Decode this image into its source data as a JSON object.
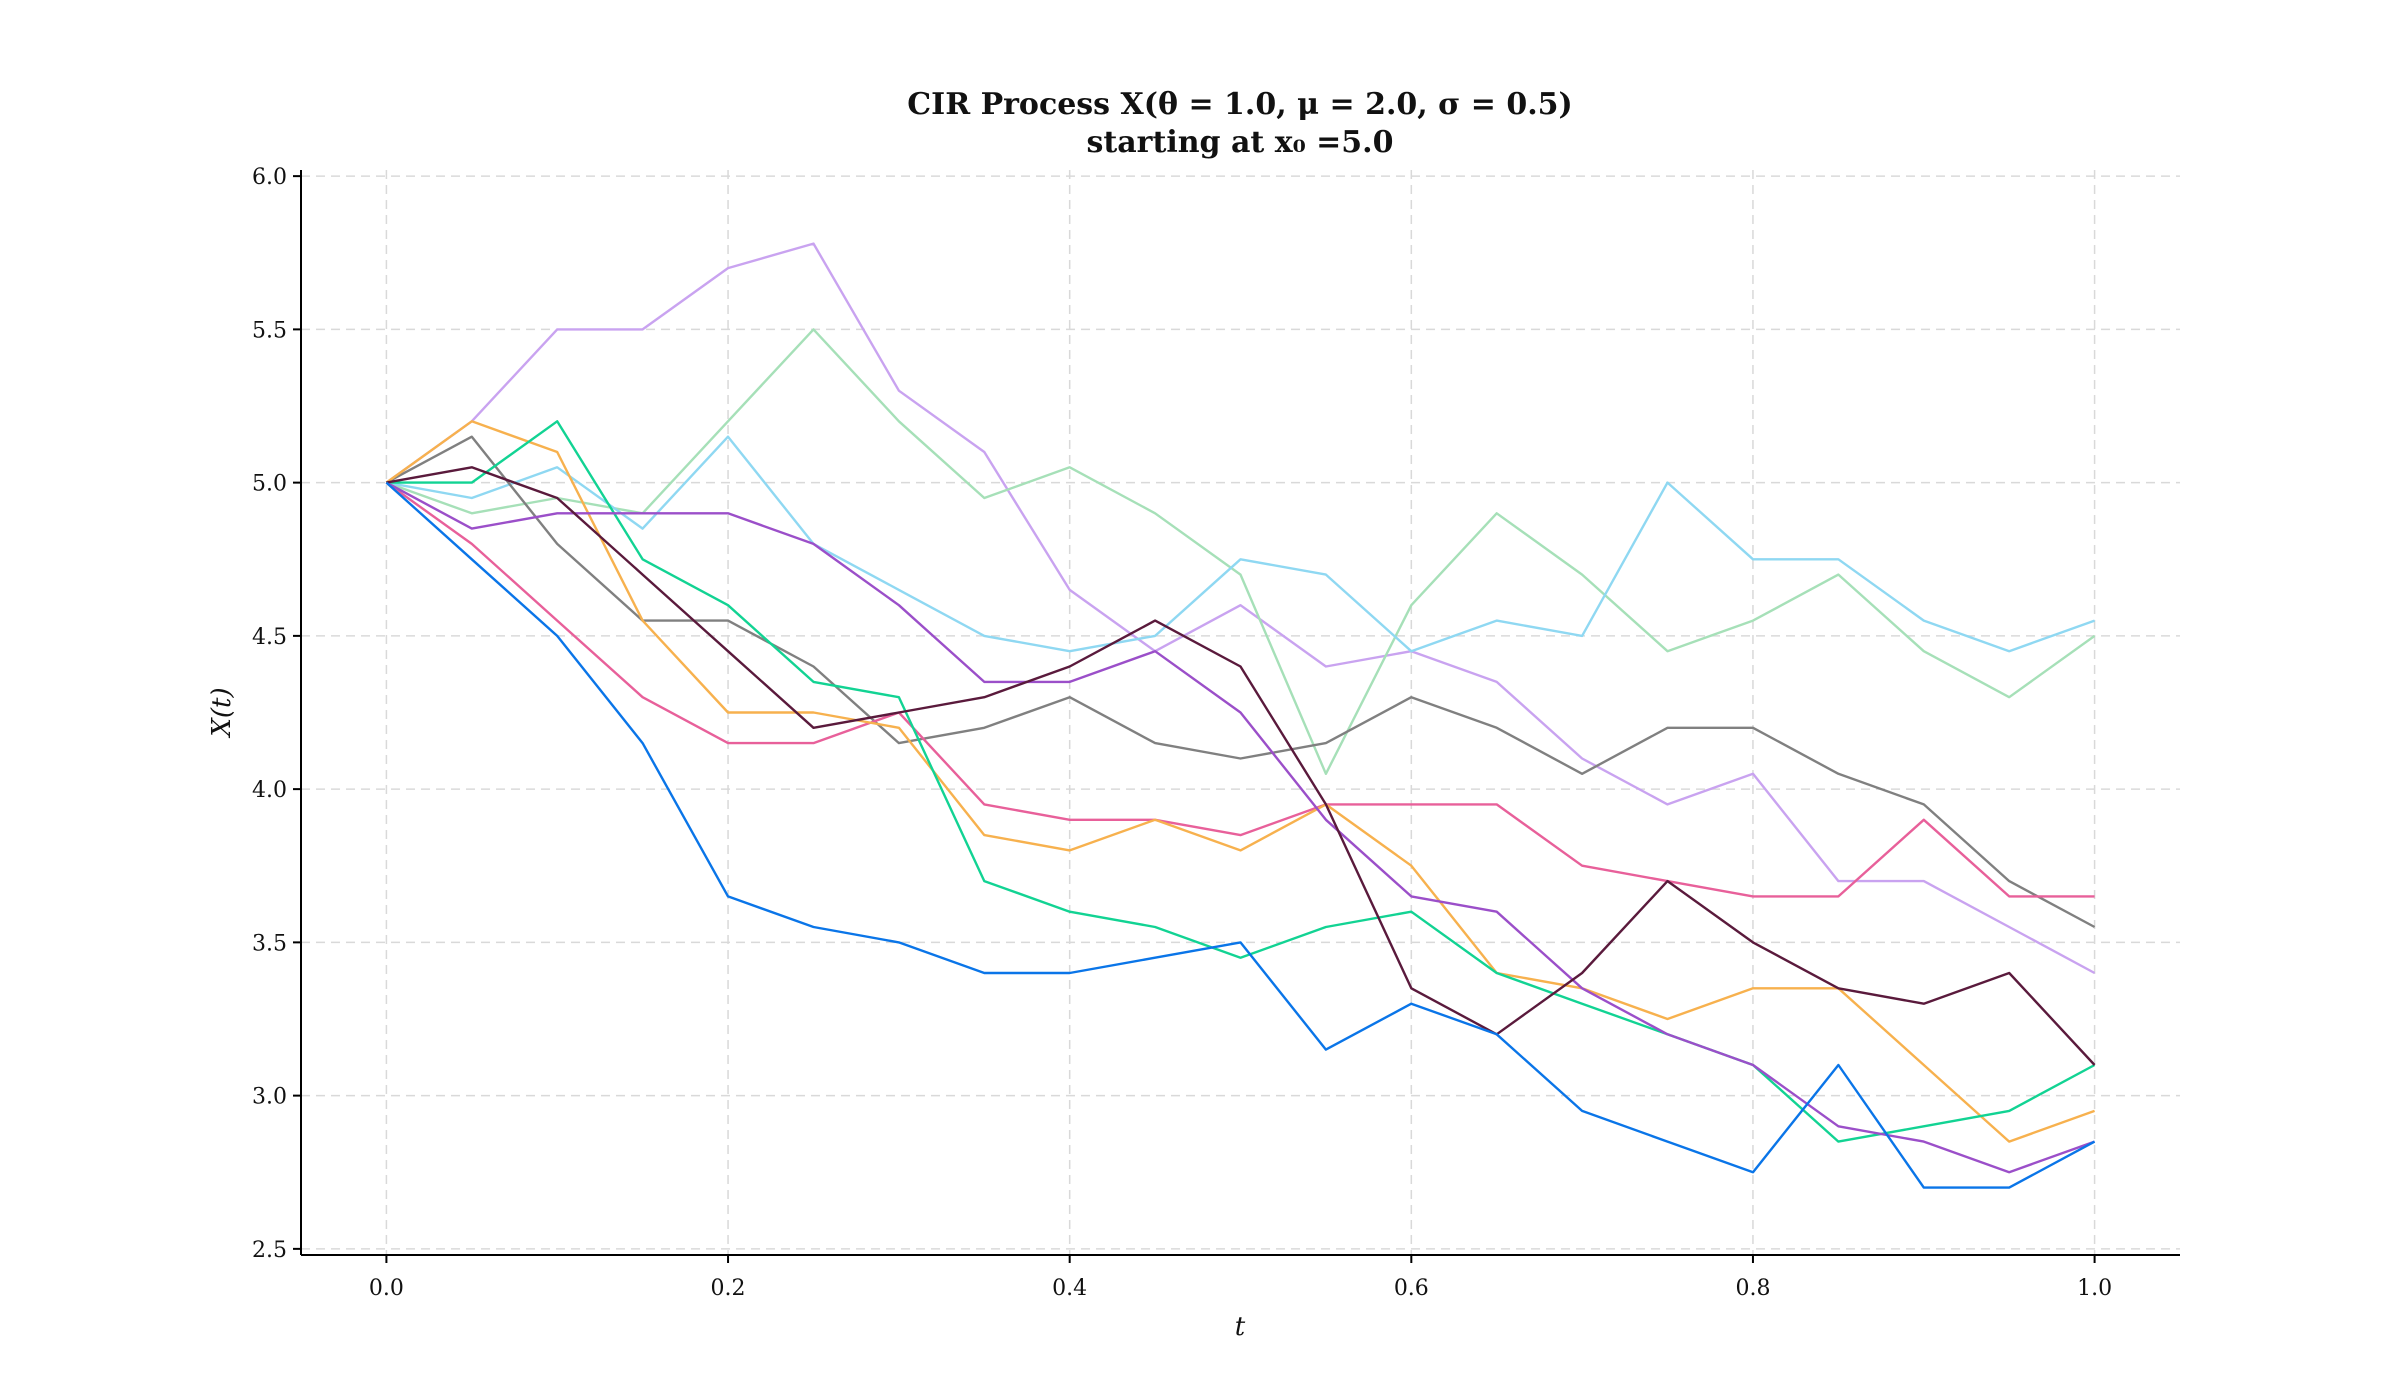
{
  "chart_data": {
    "type": "line",
    "title_line1": "CIR Process X(θ = 1.0, μ = 2.0, σ = 0.5)",
    "title_line2": "starting at x₀ =5.0",
    "xlabel": "t",
    "ylabel": "X(t)",
    "xlim": [
      -0.05,
      1.05
    ],
    "ylim": [
      2.48,
      6.02
    ],
    "xticks": [
      0.0,
      0.2,
      0.4,
      0.6,
      0.8,
      1.0
    ],
    "xtick_labels": [
      "0.0",
      "0.2",
      "0.4",
      "0.6",
      "0.8",
      "1.0"
    ],
    "yticks": [
      2.5,
      3.0,
      3.5,
      4.0,
      4.5,
      5.0,
      5.5,
      6.0
    ],
    "ytick_labels": [
      "2.5",
      "3.0",
      "3.5",
      "4.0",
      "4.5",
      "5.0",
      "5.5",
      "6.0"
    ],
    "grid": true,
    "x": [
      0.0,
      0.05,
      0.1,
      0.15,
      0.2,
      0.25,
      0.3,
      0.35,
      0.4,
      0.45,
      0.5,
      0.55,
      0.6,
      0.65,
      0.7,
      0.75,
      0.8,
      0.85,
      0.9,
      0.95,
      1.0
    ],
    "series": [
      {
        "color": "#c9a3f0",
        "values": [
          5.0,
          5.2,
          5.5,
          5.5,
          5.7,
          5.78,
          5.3,
          5.1,
          4.65,
          4.45,
          4.6,
          4.4,
          4.45,
          4.35,
          4.1,
          3.95,
          4.05,
          3.7,
          3.7,
          3.55,
          3.4
        ]
      },
      {
        "color": "#a6e0b8",
        "values": [
          5.0,
          4.9,
          4.95,
          4.9,
          5.2,
          5.5,
          5.2,
          4.95,
          5.05,
          4.9,
          4.7,
          4.05,
          4.6,
          4.9,
          4.7,
          4.45,
          4.55,
          4.7,
          4.45,
          4.3,
          4.5
        ]
      },
      {
        "color": "#8fd8f2",
        "values": [
          5.0,
          4.95,
          5.05,
          4.85,
          5.15,
          4.8,
          4.65,
          4.5,
          4.45,
          4.5,
          4.75,
          4.7,
          4.45,
          4.55,
          4.5,
          5.0,
          4.75,
          4.75,
          4.55,
          4.45,
          4.55
        ]
      },
      {
        "color": "#808080",
        "values": [
          5.0,
          5.15,
          4.8,
          4.55,
          4.55,
          4.4,
          4.15,
          4.2,
          4.3,
          4.15,
          4.1,
          4.15,
          4.3,
          4.2,
          4.05,
          4.2,
          4.2,
          4.05,
          3.95,
          3.7,
          3.55
        ]
      },
      {
        "color": "#e8609a",
        "values": [
          5.0,
          4.8,
          4.55,
          4.3,
          4.15,
          4.15,
          4.25,
          3.95,
          3.9,
          3.9,
          3.85,
          3.95,
          3.95,
          3.95,
          3.75,
          3.7,
          3.65,
          3.65,
          3.9,
          3.65,
          3.65
        ]
      },
      {
        "color": "#f7b14e",
        "values": [
          5.0,
          5.2,
          5.1,
          4.55,
          4.25,
          4.25,
          4.2,
          3.85,
          3.8,
          3.9,
          3.8,
          3.95,
          3.75,
          3.4,
          3.35,
          3.25,
          3.35,
          3.35,
          3.1,
          2.85,
          2.95
        ]
      },
      {
        "color": "#12d393",
        "values": [
          5.0,
          5.0,
          5.2,
          4.75,
          4.6,
          4.35,
          4.3,
          3.7,
          3.6,
          3.55,
          3.45,
          3.55,
          3.6,
          3.4,
          3.3,
          3.2,
          3.1,
          2.85,
          2.9,
          2.95,
          3.1
        ]
      },
      {
        "color": "#9b4fc9",
        "values": [
          5.0,
          4.85,
          4.9,
          4.9,
          4.9,
          4.8,
          4.6,
          4.35,
          4.35,
          4.45,
          4.25,
          3.9,
          3.65,
          3.6,
          3.35,
          3.2,
          3.1,
          2.9,
          2.85,
          2.75,
          2.85
        ]
      },
      {
        "color": "#5a1a3c",
        "values": [
          5.0,
          5.05,
          4.95,
          4.7,
          4.45,
          4.2,
          4.25,
          4.3,
          4.4,
          4.55,
          4.4,
          3.95,
          3.35,
          3.2,
          3.4,
          3.7,
          3.5,
          3.35,
          3.3,
          3.4,
          3.1
        ]
      },
      {
        "color": "#0a75e8",
        "values": [
          5.0,
          4.75,
          4.5,
          4.15,
          3.65,
          3.55,
          3.5,
          3.4,
          3.4,
          3.45,
          3.5,
          3.15,
          3.3,
          3.2,
          2.95,
          2.85,
          2.75,
          3.1,
          2.7,
          2.7,
          2.85
        ]
      }
    ]
  }
}
